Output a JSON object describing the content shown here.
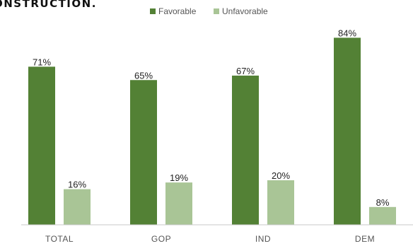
{
  "title_fragment": "ONSTRUCTION.",
  "colors": {
    "favorable": "#538135",
    "unfavorable": "#a9c596",
    "axis": "#c8c8c8"
  },
  "chart_data": {
    "type": "bar",
    "categories": [
      "TOTAL",
      "GOP",
      "IND",
      "DEM"
    ],
    "series": [
      {
        "name": "Favorable",
        "values": [
          71,
          65,
          67,
          84
        ],
        "labels": [
          "71%",
          "65%",
          "67%",
          "84%"
        ]
      },
      {
        "name": "Unfavorable",
        "values": [
          16,
          19,
          20,
          8
        ],
        "labels": [
          "16%",
          "19%",
          "20%",
          "8%"
        ]
      }
    ],
    "ylim": [
      0,
      100
    ],
    "grid": false,
    "legend": "top-center"
  }
}
